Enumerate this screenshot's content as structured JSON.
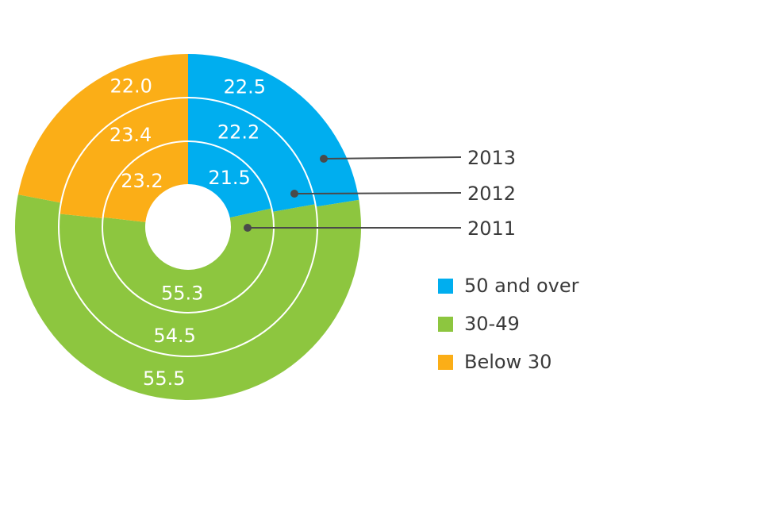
{
  "chart_data": {
    "type": "donut",
    "rings": [
      {
        "label": "2011",
        "values": {
          "50 and over": 21.5,
          "30-49": 55.3,
          "Below 30": 23.2
        }
      },
      {
        "label": "2012",
        "values": {
          "50 and over": 22.2,
          "30-49": 54.5,
          "Below 30": 23.4
        }
      },
      {
        "label": "2013",
        "values": {
          "50 and over": 22.5,
          "30-49": 55.5,
          "Below 30": 22.0
        }
      }
    ],
    "categories": [
      "50 and over",
      "30-49",
      "Below 30"
    ],
    "colors": {
      "50 and over": "#00aeef",
      "30-49": "#8dc63f",
      "Below 30": "#fbae17"
    },
    "legend": [
      {
        "label": "50 and over",
        "color": "#00aeef"
      },
      {
        "label": "30-49",
        "color": "#8dc63f"
      },
      {
        "label": "Below 30",
        "color": "#fbae17"
      }
    ],
    "ring_labels": [
      "2013",
      "2012",
      "2011"
    ],
    "legend_position": "right"
  }
}
